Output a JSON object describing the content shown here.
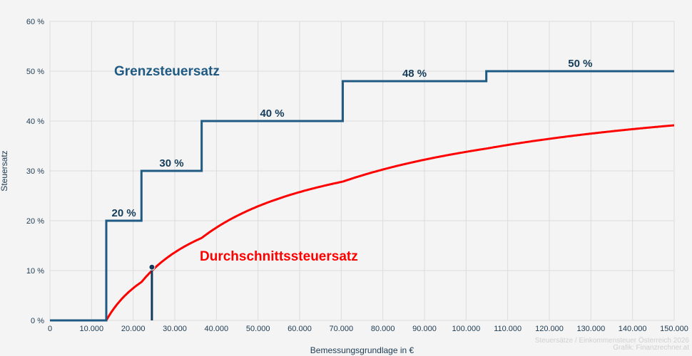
{
  "chart_data": {
    "type": "line",
    "xlabel": "Bemessungsgrundlage in €",
    "ylabel": "Steuersatz",
    "xlim": [
      0,
      150000
    ],
    "ylim": [
      0,
      60
    ],
    "x_ticks": [
      "0",
      "10.000",
      "20.000",
      "30.000",
      "40.000",
      "50.000",
      "60.000",
      "70.000",
      "80.000",
      "90.000",
      "100.000",
      "110.000",
      "120.000",
      "130.000",
      "140.000",
      "150.000"
    ],
    "y_ticks": [
      "0 %",
      "10 %",
      "20 %",
      "30 %",
      "40 %",
      "50 %",
      "60 %"
    ],
    "grid": true,
    "series": [
      {
        "name": "Grenzsteuersatz",
        "color": "#1f5a82",
        "style": "step",
        "brackets": [
          {
            "from": 0,
            "rate": 0
          },
          {
            "from": 13539,
            "rate": 20
          },
          {
            "from": 21992,
            "rate": 30
          },
          {
            "from": 36458,
            "rate": 40
          },
          {
            "from": 70365,
            "rate": 48
          },
          {
            "from": 104859,
            "rate": 50
          }
        ],
        "step_labels": [
          "20 %",
          "30 %",
          "40 %",
          "48 %",
          "50 %"
        ]
      },
      {
        "name": "Durchschnittssteuersatz",
        "color": "#ff0000",
        "style": "line"
      }
    ],
    "marker": {
      "x": 24500,
      "color": "#143c5a"
    },
    "watermark": [
      "Steuersätze / Einkommensteuer Österreich 2026",
      "Grafik: Finanzrechner.at"
    ]
  }
}
